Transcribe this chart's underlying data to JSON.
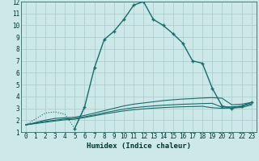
{
  "xlabel": "Humidex (Indice chaleur)",
  "background_color": "#cde8e8",
  "grid_color": "#aecece",
  "line_color": "#1a6b6b",
  "xlim": [
    -0.5,
    23.5
  ],
  "ylim": [
    1,
    12
  ],
  "xticks": [
    0,
    1,
    2,
    3,
    4,
    5,
    6,
    7,
    8,
    9,
    10,
    11,
    12,
    13,
    14,
    15,
    16,
    17,
    18,
    19,
    20,
    21,
    22,
    23
  ],
  "yticks": [
    1,
    2,
    3,
    4,
    5,
    6,
    7,
    8,
    9,
    10,
    11,
    12
  ],
  "series": [
    {
      "x": [
        0,
        1,
        2,
        3,
        4,
        5,
        6,
        7,
        8,
        9,
        10,
        11,
        12,
        13,
        14,
        15,
        16,
        17,
        18,
        19,
        20,
        21,
        22,
        23
      ],
      "y": [
        1.6,
        2.1,
        2.6,
        2.7,
        2.5,
        1.3,
        3.1,
        6.4,
        8.8,
        9.5,
        10.5,
        11.7,
        12.0,
        10.5,
        10.0,
        9.3,
        8.5,
        7.0,
        6.8,
        4.7,
        3.2,
        3.0,
        3.2,
        3.5
      ],
      "marker": true,
      "linewidth": 1.0,
      "markersize": 2.5,
      "linestyle": "-",
      "dotted_start": true,
      "dotted_end": 5
    },
    {
      "x": [
        0,
        2,
        3,
        4,
        5,
        6,
        7,
        8,
        9,
        10,
        11,
        12,
        13,
        14,
        15,
        16,
        17,
        18,
        19,
        20,
        21,
        22,
        23
      ],
      "y": [
        1.6,
        2.0,
        2.15,
        2.2,
        2.25,
        2.4,
        2.6,
        2.8,
        3.0,
        3.2,
        3.35,
        3.45,
        3.55,
        3.65,
        3.72,
        3.78,
        3.82,
        3.87,
        3.9,
        3.85,
        3.3,
        3.35,
        3.5
      ],
      "marker": false,
      "linewidth": 0.8,
      "linestyle": "-"
    },
    {
      "x": [
        0,
        2,
        3,
        4,
        5,
        6,
        7,
        8,
        9,
        10,
        11,
        12,
        13,
        14,
        15,
        16,
        17,
        18,
        19,
        20,
        21,
        22,
        23
      ],
      "y": [
        1.6,
        1.9,
        2.0,
        2.1,
        2.15,
        2.28,
        2.45,
        2.62,
        2.78,
        2.93,
        3.05,
        3.13,
        3.2,
        3.26,
        3.3,
        3.34,
        3.37,
        3.4,
        3.42,
        3.1,
        3.13,
        3.18,
        3.38
      ],
      "marker": false,
      "linewidth": 0.8,
      "linestyle": "-"
    },
    {
      "x": [
        0,
        2,
        3,
        4,
        5,
        6,
        7,
        8,
        9,
        10,
        11,
        12,
        13,
        14,
        15,
        16,
        17,
        18,
        19,
        20,
        21,
        22,
        23
      ],
      "y": [
        1.6,
        1.82,
        1.93,
        2.03,
        2.08,
        2.22,
        2.37,
        2.52,
        2.65,
        2.78,
        2.88,
        2.95,
        3.01,
        3.06,
        3.1,
        3.13,
        3.15,
        3.17,
        3.05,
        3.0,
        3.03,
        3.07,
        3.28
      ],
      "marker": false,
      "linewidth": 0.8,
      "linestyle": "-"
    }
  ]
}
